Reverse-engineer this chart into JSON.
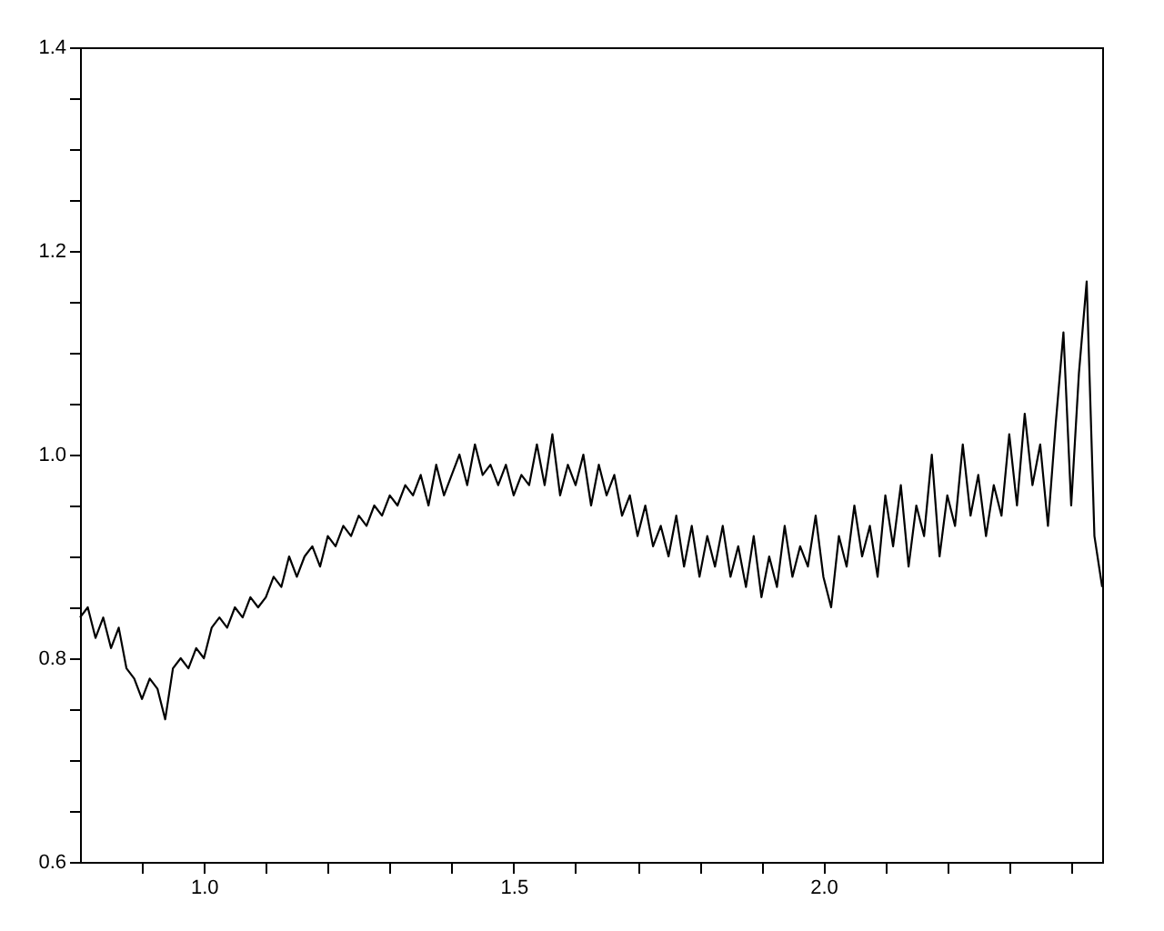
{
  "chart_data": {
    "type": "line",
    "x": [
      0.8,
      0.8125,
      0.825,
      0.8375,
      0.85,
      0.8625,
      0.875,
      0.8875,
      0.9,
      0.9125,
      0.925,
      0.9375,
      0.95,
      0.9625,
      0.975,
      0.9875,
      1.0,
      1.0125,
      1.025,
      1.0375,
      1.05,
      1.0625,
      1.075,
      1.0875,
      1.1,
      1.1125,
      1.125,
      1.1375,
      1.15,
      1.1625,
      1.175,
      1.1875,
      1.2,
      1.2125,
      1.225,
      1.2375,
      1.25,
      1.2625,
      1.275,
      1.2875,
      1.3,
      1.3125,
      1.325,
      1.3375,
      1.35,
      1.3625,
      1.375,
      1.3875,
      1.4,
      1.4125,
      1.425,
      1.4375,
      1.45,
      1.4625,
      1.475,
      1.4875,
      1.5,
      1.5125,
      1.525,
      1.5375,
      1.55,
      1.5625,
      1.575,
      1.5875,
      1.6,
      1.6125,
      1.625,
      1.6375,
      1.65,
      1.6625,
      1.675,
      1.6875,
      1.7,
      1.7125,
      1.725,
      1.7375,
      1.75,
      1.7625,
      1.775,
      1.7875,
      1.8,
      1.8125,
      1.825,
      1.8375,
      1.85,
      1.8625,
      1.875,
      1.8875,
      1.9,
      1.9125,
      1.925,
      1.9375,
      1.95,
      1.9625,
      1.975,
      1.9875,
      2.0,
      2.0125,
      2.025,
      2.0375,
      2.05,
      2.0625,
      2.075,
      2.0875,
      2.1,
      2.1125,
      2.125,
      2.1375,
      2.15,
      2.1625,
      2.175,
      2.1875,
      2.2,
      2.2125,
      2.225,
      2.2375,
      2.25,
      2.2625,
      2.275,
      2.2875,
      2.3,
      2.3125,
      2.325,
      2.3375,
      2.35,
      2.3625,
      2.375,
      2.3875,
      2.4,
      2.4125,
      2.425,
      2.4375,
      2.45
    ],
    "series": [
      {
        "color": "#000000",
        "values": [
          0.84,
          0.85,
          0.82,
          0.84,
          0.81,
          0.83,
          0.79,
          0.78,
          0.76,
          0.78,
          0.77,
          0.74,
          0.79,
          0.8,
          0.79,
          0.81,
          0.8,
          0.83,
          0.84,
          0.83,
          0.85,
          0.84,
          0.86,
          0.85,
          0.86,
          0.88,
          0.87,
          0.9,
          0.88,
          0.9,
          0.91,
          0.89,
          0.92,
          0.91,
          0.93,
          0.92,
          0.94,
          0.93,
          0.95,
          0.94,
          0.96,
          0.95,
          0.97,
          0.96,
          0.98,
          0.95,
          0.99,
          0.96,
          0.98,
          1.0,
          0.97,
          1.01,
          0.98,
          0.99,
          0.97,
          0.99,
          0.96,
          0.98,
          0.97,
          1.01,
          0.97,
          1.02,
          0.96,
          0.99,
          0.97,
          1.0,
          0.95,
          0.99,
          0.96,
          0.98,
          0.94,
          0.96,
          0.92,
          0.95,
          0.91,
          0.93,
          0.9,
          0.94,
          0.89,
          0.93,
          0.88,
          0.92,
          0.89,
          0.93,
          0.88,
          0.91,
          0.87,
          0.92,
          0.86,
          0.9,
          0.87,
          0.93,
          0.88,
          0.91,
          0.89,
          0.94,
          0.88,
          0.85,
          0.92,
          0.89,
          0.95,
          0.9,
          0.93,
          0.88,
          0.96,
          0.91,
          0.97,
          0.89,
          0.95,
          0.92,
          1.0,
          0.9,
          0.96,
          0.93,
          1.01,
          0.94,
          0.98,
          0.92,
          0.97,
          0.94,
          1.02,
          0.95,
          1.04,
          0.97,
          1.01,
          0.93,
          1.03,
          1.12,
          0.95,
          1.08,
          1.17,
          0.92,
          0.87
        ]
      }
    ],
    "xlim": [
      0.8,
      2.45
    ],
    "xticks": [
      {
        "value": 0.9,
        "label": null
      },
      {
        "value": 1.0,
        "label": "1.0"
      },
      {
        "value": 1.1,
        "label": null
      },
      {
        "value": 1.2,
        "label": null
      },
      {
        "value": 1.3,
        "label": null
      },
      {
        "value": 1.4,
        "label": null
      },
      1.5,
      {
        "value": 1.6,
        "label": null
      },
      {
        "value": 1.7,
        "label": null
      },
      {
        "value": 1.8,
        "label": null
      },
      {
        "value": 1.9,
        "label": null
      },
      {
        "value": 2.0,
        "label": "2.0"
      },
      {
        "value": 2.1,
        "label": null
      },
      {
        "value": 2.2,
        "label": null
      },
      {
        "value": 2.3,
        "label": null
      },
      {
        "value": 2.4,
        "label": null
      }
    ],
    "ylim": [
      0.6,
      1.4
    ],
    "yticks": [
      0.6,
      {
        "value": 0.65,
        "label": null
      },
      {
        "value": 0.7,
        "label": null
      },
      {
        "value": 0.75,
        "label": null
      },
      0.8,
      {
        "value": 0.85,
        "label": null
      },
      {
        "value": 0.9,
        "label": null
      },
      {
        "value": 0.95,
        "label": null
      },
      {
        "value": 1.0,
        "label": "1.0"
      },
      {
        "value": 1.05,
        "label": null
      },
      {
        "value": 1.1,
        "label": null
      },
      {
        "value": 1.15,
        "label": null
      },
      1.2,
      {
        "value": 1.25,
        "label": null
      },
      {
        "value": 1.3,
        "label": null
      },
      {
        "value": 1.35,
        "label": null
      },
      1.4
    ],
    "grid": false,
    "marker": "none",
    "line_style": "solid"
  }
}
